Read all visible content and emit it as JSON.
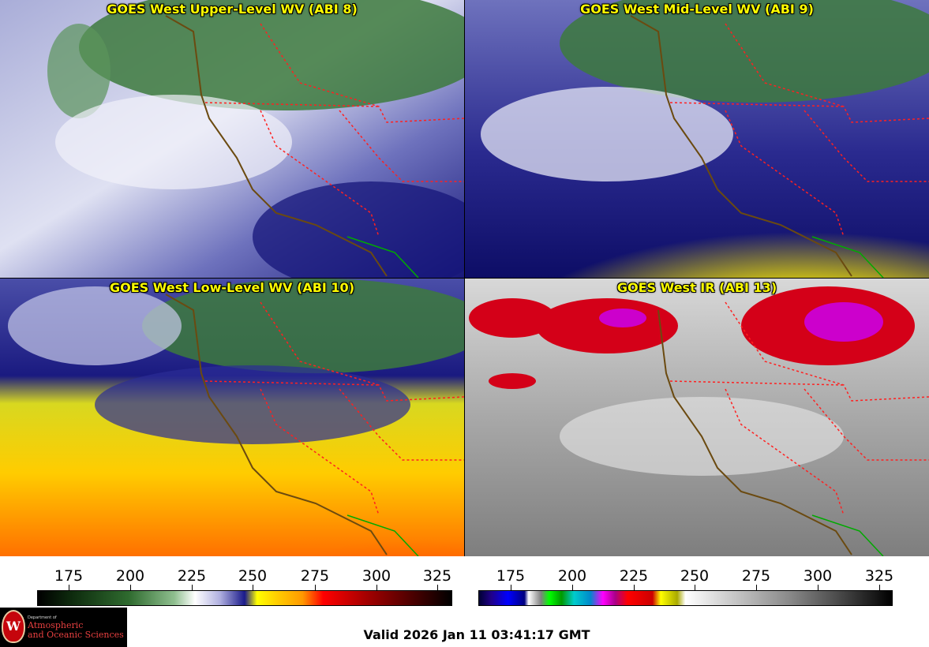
{
  "panels": [
    {
      "title": "GOES West Upper-Level WV (ABI 8)",
      "palette": "water-vapor"
    },
    {
      "title": "GOES West Mid-Level WV (ABI 9)",
      "palette": "water-vapor"
    },
    {
      "title": "GOES West Low-Level WV (ABI 10)",
      "palette": "water-vapor"
    },
    {
      "title": "GOES West IR (ABI 13)",
      "palette": "infrared"
    }
  ],
  "colorbars": [
    {
      "name": "water-vapor",
      "ticks": [
        "175",
        "200",
        "225",
        "250",
        "275",
        "300",
        "325"
      ]
    },
    {
      "name": "infrared",
      "ticks": [
        "175",
        "200",
        "225",
        "250",
        "275",
        "300",
        "325"
      ]
    }
  ],
  "logo": {
    "seal_letter": "W",
    "line1": "Department of",
    "line2": "Atmospheric",
    "line3": "and Oceanic Sciences"
  },
  "valid_time": "Valid 2026 Jan 11 03:41:17 GMT",
  "colors": {
    "state_boundary": "#ff2020",
    "coastline": "#6b4a10",
    "mexico_border": "#00aa00",
    "title_text": "#ffff00"
  }
}
